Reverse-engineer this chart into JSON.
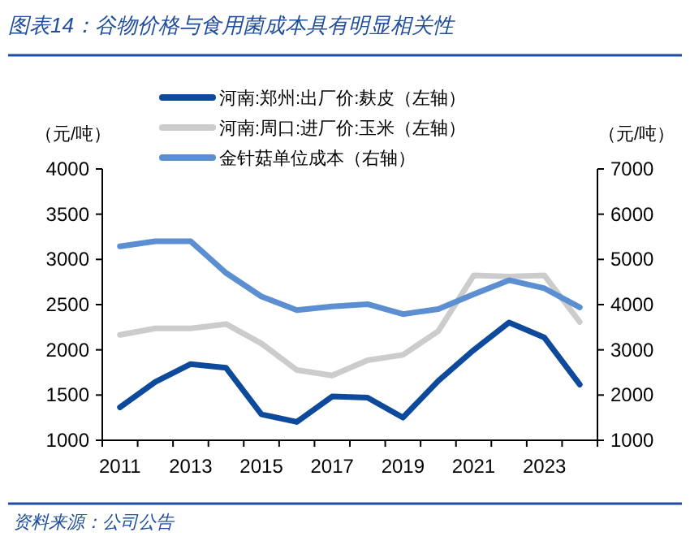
{
  "chart_data": {
    "type": "line",
    "title": "图表14：谷物价格与食用菌成本具有明显相关性",
    "ylabel": "（元/吨）",
    "y2label": "（元/吨）",
    "categories": [
      "2011",
      null,
      "2013",
      null,
      "2015",
      null,
      "2017",
      null,
      "2019",
      null,
      "2021",
      null,
      "2023",
      null
    ],
    "series": [
      {
        "name": "河南:郑州:出厂价:麸皮（左轴）",
        "color": "#0e4a9c",
        "values": [
          1365,
          1645,
          1843,
          1801,
          1287,
          1203,
          1484,
          1472,
          1251,
          1657,
          1998,
          2303,
          2136,
          1616
        ]
      },
      {
        "name": "河南:周口:进厂价:玉米（左轴）",
        "color": "#cccccc",
        "values": [
          2166,
          2237,
          2237,
          2285,
          2070,
          1777,
          1717,
          1885,
          1944,
          2207,
          2823,
          2811,
          2823,
          2309
        ]
      },
      {
        "name": "金针菇单位成本（右轴）",
        "color": "#5b8fd2",
        "axis": "y2",
        "values": [
          5290,
          5400,
          5400,
          4700,
          4180,
          3880,
          3960,
          4010,
          3790,
          3900,
          4230,
          4540,
          4360,
          3940
        ]
      }
    ],
    "ylim": [
      1000,
      4000
    ],
    "yticks": [
      1000,
      1500,
      2000,
      2500,
      3000,
      3500,
      4000
    ],
    "y2lim": [
      1000,
      7000
    ],
    "y2ticks": [
      1000,
      2000,
      3000,
      4000,
      5000,
      6000,
      7000
    ],
    "legend": "top left",
    "grid": false,
    "annotations": [
      "资料来源：公司公告"
    ]
  }
}
